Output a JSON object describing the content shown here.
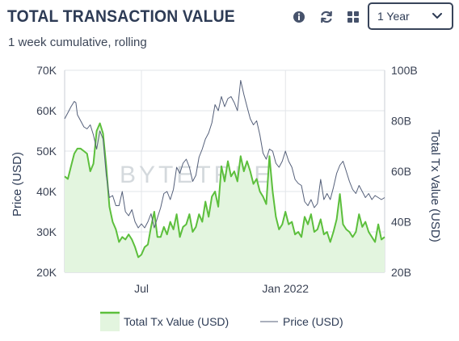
{
  "header": {
    "title": "TOTAL TRANSACTION VALUE",
    "subtitle": "1 week cumulative, rolling",
    "icons": [
      "info-icon",
      "refresh-icon",
      "grid-icon"
    ],
    "range_select": {
      "value": "1 Year"
    }
  },
  "watermark": "BYTETREE",
  "colors": {
    "tx_line": "#5cbf3c",
    "tx_fill": "#e3f5df",
    "price_line": "#55607a",
    "grid": "#e2e5e9"
  },
  "chart_data": {
    "type": "line",
    "x_ticks": [
      {
        "label": "Jul",
        "t": 0.24
      },
      {
        "label": "Jan 2022",
        "t": 0.69
      }
    ],
    "y_left": {
      "label": "Price (USD)",
      "range": [
        20000,
        70000
      ],
      "ticks": [
        "20K",
        "30K",
        "40K",
        "50K",
        "60K",
        "70K"
      ]
    },
    "y_right": {
      "label": "Total Tx Value (USD)",
      "range": [
        20000000000,
        100000000000
      ],
      "ticks": [
        "20B",
        "40B",
        "60B",
        "80B",
        "100B"
      ]
    },
    "grid": true,
    "legend": {
      "position": "bottom",
      "items": [
        {
          "label": "Total Tx Value (USD)"
        },
        {
          "label": "Price (USD)"
        }
      ]
    },
    "series": [
      {
        "name": "Total Tx Value (USD)",
        "axis": "right",
        "unit": "B",
        "style": "area",
        "points": [
          [
            0.0,
            58
          ],
          [
            0.01,
            57
          ],
          [
            0.02,
            62
          ],
          [
            0.03,
            67
          ],
          [
            0.04,
            69
          ],
          [
            0.05,
            69
          ],
          [
            0.06,
            68
          ],
          [
            0.07,
            67
          ],
          [
            0.08,
            60
          ],
          [
            0.09,
            63
          ],
          [
            0.1,
            76
          ],
          [
            0.11,
            79
          ],
          [
            0.12,
            75
          ],
          [
            0.13,
            62
          ],
          [
            0.14,
            46
          ],
          [
            0.15,
            40
          ],
          [
            0.16,
            37
          ],
          [
            0.17,
            32
          ],
          [
            0.18,
            34
          ],
          [
            0.19,
            33
          ],
          [
            0.2,
            35
          ],
          [
            0.21,
            33
          ],
          [
            0.22,
            30
          ],
          [
            0.23,
            26
          ],
          [
            0.24,
            27
          ],
          [
            0.25,
            30
          ],
          [
            0.26,
            31
          ],
          [
            0.27,
            38
          ],
          [
            0.28,
            44
          ],
          [
            0.29,
            34
          ],
          [
            0.3,
            34
          ],
          [
            0.31,
            38
          ],
          [
            0.32,
            35
          ],
          [
            0.33,
            40
          ],
          [
            0.34,
            37
          ],
          [
            0.35,
            43
          ],
          [
            0.36,
            34
          ],
          [
            0.37,
            38
          ],
          [
            0.38,
            39
          ],
          [
            0.39,
            43
          ],
          [
            0.4,
            36
          ],
          [
            0.41,
            38
          ],
          [
            0.42,
            43
          ],
          [
            0.43,
            40
          ],
          [
            0.44,
            48
          ],
          [
            0.45,
            42
          ],
          [
            0.46,
            50
          ],
          [
            0.47,
            52
          ],
          [
            0.48,
            46
          ],
          [
            0.49,
            62
          ],
          [
            0.5,
            56
          ],
          [
            0.51,
            64
          ],
          [
            0.52,
            58
          ],
          [
            0.53,
            60
          ],
          [
            0.54,
            56
          ],
          [
            0.55,
            66
          ],
          [
            0.56,
            60
          ],
          [
            0.57,
            64
          ],
          [
            0.58,
            60
          ],
          [
            0.59,
            55
          ],
          [
            0.6,
            57
          ],
          [
            0.61,
            52
          ],
          [
            0.62,
            50
          ],
          [
            0.63,
            47
          ],
          [
            0.64,
            66
          ],
          [
            0.65,
            52
          ],
          [
            0.66,
            42
          ],
          [
            0.67,
            37
          ],
          [
            0.68,
            39
          ],
          [
            0.69,
            44
          ],
          [
            0.7,
            39
          ],
          [
            0.71,
            40
          ],
          [
            0.72,
            35
          ],
          [
            0.73,
            36
          ],
          [
            0.74,
            34
          ],
          [
            0.75,
            42
          ],
          [
            0.76,
            39
          ],
          [
            0.77,
            43
          ],
          [
            0.78,
            36
          ],
          [
            0.79,
            37
          ],
          [
            0.8,
            41
          ],
          [
            0.81,
            35
          ],
          [
            0.82,
            36
          ],
          [
            0.83,
            32
          ],
          [
            0.84,
            36
          ],
          [
            0.85,
            41
          ],
          [
            0.86,
            51
          ],
          [
            0.87,
            39
          ],
          [
            0.88,
            37
          ],
          [
            0.89,
            36
          ],
          [
            0.9,
            34
          ],
          [
            0.91,
            36
          ],
          [
            0.92,
            43
          ],
          [
            0.93,
            38
          ],
          [
            0.94,
            40
          ],
          [
            0.95,
            36
          ],
          [
            0.96,
            34
          ],
          [
            0.97,
            32
          ],
          [
            0.98,
            39
          ],
          [
            0.99,
            33
          ],
          [
            1.0,
            34
          ]
        ]
      },
      {
        "name": "Price (USD)",
        "axis": "left",
        "unit": "USD",
        "style": "line",
        "points": [
          [
            0.0,
            58000
          ],
          [
            0.01,
            59500
          ],
          [
            0.02,
            61000
          ],
          [
            0.03,
            62300
          ],
          [
            0.035,
            62000
          ],
          [
            0.04,
            59000
          ],
          [
            0.05,
            57500
          ],
          [
            0.06,
            56000
          ],
          [
            0.07,
            55500
          ],
          [
            0.08,
            56500
          ],
          [
            0.09,
            54000
          ],
          [
            0.1,
            50500
          ],
          [
            0.11,
            55000
          ],
          [
            0.12,
            53000
          ],
          [
            0.13,
            44000
          ],
          [
            0.14,
            38500
          ],
          [
            0.15,
            39000
          ],
          [
            0.16,
            36500
          ],
          [
            0.17,
            36500
          ],
          [
            0.18,
            40000
          ],
          [
            0.19,
            35000
          ],
          [
            0.2,
            34000
          ],
          [
            0.21,
            35500
          ],
          [
            0.22,
            32500
          ],
          [
            0.23,
            31000
          ],
          [
            0.24,
            32000
          ],
          [
            0.25,
            31000
          ],
          [
            0.26,
            32500
          ],
          [
            0.27,
            34500
          ],
          [
            0.28,
            31000
          ],
          [
            0.29,
            33500
          ],
          [
            0.3,
            36000
          ],
          [
            0.31,
            39500
          ],
          [
            0.32,
            40000
          ],
          [
            0.33,
            38000
          ],
          [
            0.34,
            40500
          ],
          [
            0.35,
            46000
          ],
          [
            0.36,
            44500
          ],
          [
            0.37,
            47000
          ],
          [
            0.38,
            48000
          ],
          [
            0.39,
            46000
          ],
          [
            0.4,
            42500
          ],
          [
            0.41,
            44000
          ],
          [
            0.42,
            48500
          ],
          [
            0.43,
            50500
          ],
          [
            0.44,
            53000
          ],
          [
            0.45,
            54500
          ],
          [
            0.46,
            57000
          ],
          [
            0.47,
            61500
          ],
          [
            0.48,
            60000
          ],
          [
            0.49,
            63500
          ],
          [
            0.5,
            61000
          ],
          [
            0.51,
            63000
          ],
          [
            0.52,
            63500
          ],
          [
            0.53,
            62000
          ],
          [
            0.54,
            60000
          ],
          [
            0.55,
            67500
          ],
          [
            0.56,
            64000
          ],
          [
            0.57,
            61000
          ],
          [
            0.58,
            58000
          ],
          [
            0.59,
            56500
          ],
          [
            0.6,
            57500
          ],
          [
            0.61,
            54000
          ],
          [
            0.62,
            49500
          ],
          [
            0.63,
            48000
          ],
          [
            0.64,
            50500
          ],
          [
            0.65,
            50000
          ],
          [
            0.66,
            47000
          ],
          [
            0.67,
            46000
          ],
          [
            0.68,
            47500
          ],
          [
            0.69,
            50000
          ],
          [
            0.7,
            47500
          ],
          [
            0.71,
            46000
          ],
          [
            0.72,
            43000
          ],
          [
            0.73,
            42000
          ],
          [
            0.74,
            41500
          ],
          [
            0.75,
            37500
          ],
          [
            0.76,
            36500
          ],
          [
            0.77,
            38000
          ],
          [
            0.78,
            36000
          ],
          [
            0.79,
            37000
          ],
          [
            0.8,
            43000
          ],
          [
            0.81,
            38000
          ],
          [
            0.82,
            39500
          ],
          [
            0.83,
            38000
          ],
          [
            0.84,
            41000
          ],
          [
            0.85,
            44500
          ],
          [
            0.86,
            46500
          ],
          [
            0.87,
            47500
          ],
          [
            0.88,
            45000
          ],
          [
            0.89,
            42500
          ],
          [
            0.9,
            40500
          ],
          [
            0.91,
            39500
          ],
          [
            0.92,
            41500
          ],
          [
            0.93,
            40000
          ],
          [
            0.94,
            38500
          ],
          [
            0.95,
            39500
          ],
          [
            0.96,
            38000
          ],
          [
            0.97,
            39000
          ],
          [
            0.98,
            38500
          ],
          [
            0.99,
            38000
          ],
          [
            1.0,
            38500
          ]
        ]
      }
    ]
  }
}
